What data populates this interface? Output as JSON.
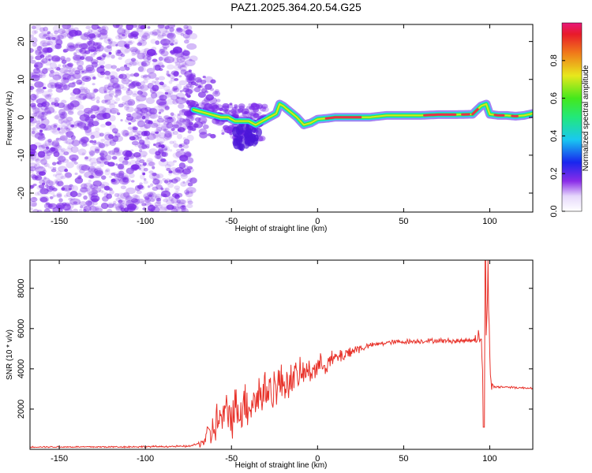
{
  "title": "PAZ1.2025.364.20.54.G25",
  "colors": {
    "snr_line": "#e8322a",
    "scatter": "#7a28e8",
    "ridge_outer": "#19d9e8",
    "ridge_mid": "#36e83a",
    "ridge_core": "#e8304c"
  },
  "chart_data": [
    {
      "type": "heatmap",
      "name": "spectrogram",
      "xlabel": "Height of straight line (km)",
      "ylabel": "Frequency (Hz)",
      "xlim": [
        -167,
        125
      ],
      "ylim": [
        -25,
        24.5
      ],
      "x_ticks": [
        -150,
        -100,
        -50,
        0,
        50,
        100
      ],
      "y_ticks": [
        -20,
        -10,
        0,
        10,
        20
      ],
      "ridge": {
        "x": [
          -72,
          -68,
          -64,
          -60,
          -56,
          -52,
          -48,
          -44,
          -40,
          -36,
          -32,
          -28,
          -24,
          -22,
          -20,
          -16,
          -12,
          -8,
          -4,
          0,
          5,
          10,
          20,
          30,
          40,
          50,
          60,
          70,
          80,
          90,
          95,
          98,
          100,
          105,
          110,
          115,
          120,
          125
        ],
        "y": [
          2,
          1.5,
          1,
          0.5,
          0,
          0,
          -1,
          -1,
          -1,
          -2,
          -1,
          0,
          1,
          3.5,
          3,
          1.5,
          0,
          -2,
          -1.5,
          -0.5,
          -0.3,
          0,
          0,
          0,
          0.5,
          0.5,
          0.5,
          0.7,
          0.7,
          0.8,
          3,
          3.5,
          0.8,
          0.5,
          0.5,
          0.3,
          0.5,
          1
        ]
      }
    },
    {
      "type": "line",
      "name": "snr",
      "xlabel": "Height of straight line (km)",
      "ylabel": "SNR (10 * v/v)",
      "xlim": [
        -167,
        125
      ],
      "ylim": [
        0,
        9400
      ],
      "x_ticks": [
        -150,
        -100,
        -50,
        0,
        50,
        100
      ],
      "y_ticks": [
        2000,
        4000,
        6000,
        8000
      ],
      "envelope": {
        "x": [
          -167,
          -120,
          -100,
          -75,
          -68,
          -62,
          -58,
          -50,
          -45,
          -40,
          -35,
          -30,
          -25,
          -20,
          -15,
          -10,
          -5,
          0,
          10,
          20,
          30,
          40,
          50,
          60,
          70,
          80,
          88,
          92,
          95,
          97,
          99,
          100,
          101,
          103,
          110,
          120,
          125
        ],
        "y": [
          120,
          120,
          130,
          150,
          300,
          800,
          1400,
          1800,
          2100,
          2300,
          2600,
          2900,
          3100,
          3300,
          3500,
          3700,
          3900,
          4100,
          4500,
          4900,
          5150,
          5300,
          5350,
          5380,
          5400,
          5380,
          5420,
          5500,
          5600,
          2000,
          8800,
          4800,
          3150,
          3100,
          3100,
          3050,
          3050
        ]
      },
      "noise_amplitude": {
        "x": [
          -167,
          -70,
          -65,
          -60,
          -45,
          -30,
          -20,
          -10,
          0,
          10,
          20,
          30,
          90,
          95,
          100,
          102,
          125
        ],
        "y": [
          40,
          60,
          600,
          1200,
          1500,
          1500,
          1200,
          900,
          700,
          500,
          400,
          150,
          150,
          600,
          900,
          80,
          60
        ]
      },
      "peak": {
        "x": 97.5,
        "y": 9400
      },
      "dip": {
        "x": 96.5,
        "y": 1100
      }
    }
  ]
}
